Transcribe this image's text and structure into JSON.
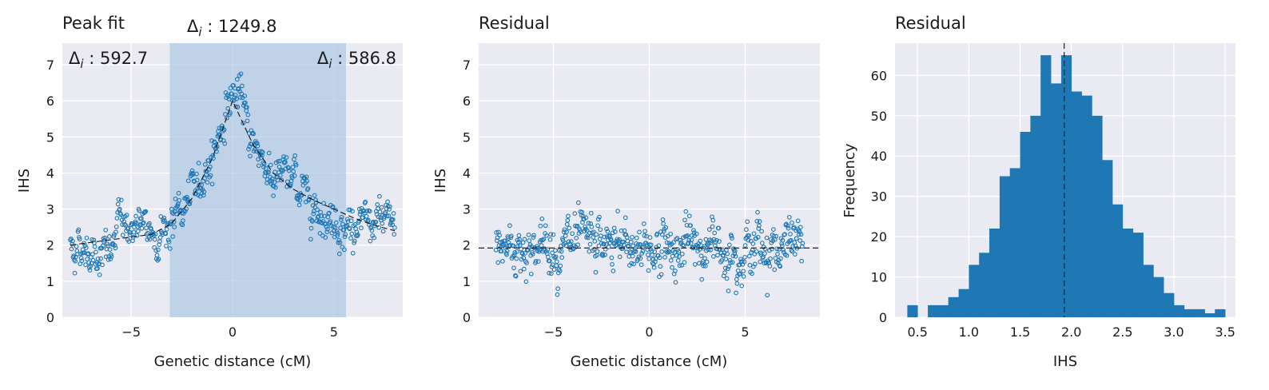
{
  "chart_data": [
    {
      "type": "scatter",
      "title": "Peak fit",
      "xlabel": "Genetic distance (cM)",
      "ylabel": "IHS",
      "xlim": [
        -8.4,
        8.4
      ],
      "ylim": [
        0,
        7.6
      ],
      "xticks": [
        -5,
        0,
        5
      ],
      "xtick_labels": [
        "−5",
        "0",
        "5"
      ],
      "yticks": [
        0,
        1,
        2,
        3,
        4,
        5,
        6,
        7
      ],
      "grid": true,
      "highlight_region": {
        "x0": -3.1,
        "x1": 5.6,
        "color": "#a8c4e0"
      },
      "annotations": [
        {
          "text": "Δi : 1249.8",
          "position": "above-plot-centered-on-region"
        },
        {
          "text": "Δi : 592.7",
          "position": "top-left"
        },
        {
          "text": "Δi : 586.8",
          "position": "top-right"
        }
      ],
      "peak_fit_curve": {
        "style": "dashed",
        "color": "#111111",
        "x": [
          -8,
          -6,
          -4,
          -3,
          -2,
          -1,
          0,
          1,
          2,
          3,
          4,
          5,
          6,
          7,
          8
        ],
        "y": [
          2.0,
          2.15,
          2.3,
          2.6,
          3.3,
          4.4,
          6.0,
          4.8,
          4.0,
          3.55,
          3.25,
          3.0,
          2.75,
          2.55,
          2.4
        ]
      },
      "scatter_profile": {
        "n_points": 600,
        "x_range": [
          -8,
          8
        ],
        "color": "#1f77b4",
        "marker": "open-circle",
        "trend_x": [
          -8,
          -7,
          -6,
          -5.5,
          -5,
          -4,
          -3,
          -2,
          -1,
          0,
          0.5,
          1,
          2,
          3,
          4,
          5,
          6,
          7,
          8
        ],
        "trend_y": [
          2.0,
          1.9,
          1.7,
          2.8,
          2.5,
          2.3,
          2.6,
          3.3,
          4.5,
          6.3,
          5.8,
          4.9,
          3.9,
          3.8,
          3.2,
          2.7,
          2.5,
          2.5,
          2.6
        ],
        "noise_sd": 0.32
      }
    },
    {
      "type": "scatter",
      "title": "Residual",
      "xlabel": "Genetic distance (cM)",
      "ylabel": "IHS",
      "xlim": [
        -8.9,
        8.9
      ],
      "ylim": [
        0,
        7.6
      ],
      "xticks": [
        -5,
        0,
        5
      ],
      "xtick_labels": [
        "−5",
        "0",
        "5"
      ],
      "yticks": [
        0,
        1,
        2,
        3,
        4,
        5,
        6,
        7
      ],
      "grid": true,
      "hline": {
        "y": 1.92,
        "style": "dashed",
        "color": "#111111"
      },
      "scatter_profile": {
        "n_points": 600,
        "x_range": [
          -8,
          8
        ],
        "color": "#1f77b4",
        "marker": "open-circle",
        "center": 1.95,
        "noise_sd": 0.42
      }
    },
    {
      "type": "histogram",
      "title": "Residual",
      "xlabel": "IHS",
      "ylabel": "Frequency",
      "xlim": [
        0.28,
        3.6
      ],
      "ylim": [
        0,
        68
      ],
      "xticks": [
        0.5,
        1.0,
        1.5,
        2.0,
        2.5,
        3.0,
        3.5
      ],
      "xtick_labels": [
        "0.5",
        "1.0",
        "1.5",
        "2.0",
        "2.5",
        "3.0",
        "3.5"
      ],
      "yticks": [
        0,
        10,
        20,
        30,
        40,
        50,
        60
      ],
      "grid": true,
      "bar_color": "#1f77b4",
      "bin_start": 0.4,
      "bin_width": 0.1,
      "counts": [
        3,
        0,
        3,
        3,
        5,
        7,
        13,
        16,
        22,
        35,
        37,
        46,
        50,
        65,
        58,
        65,
        56,
        55,
        50,
        39,
        28,
        22,
        21,
        13,
        10,
        6,
        3,
        2,
        2,
        1,
        2
      ],
      "vline": {
        "x": 1.93,
        "style": "dashed",
        "color": "#111111"
      }
    }
  ]
}
